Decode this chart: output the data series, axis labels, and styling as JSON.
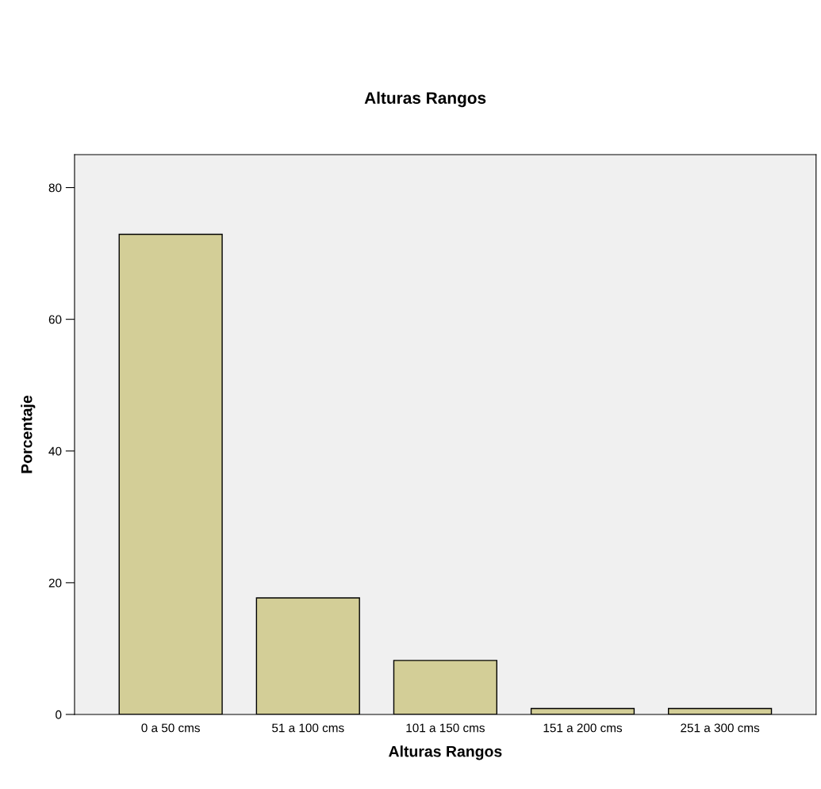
{
  "chart_data": {
    "type": "bar",
    "title": "Alturas Rangos",
    "xlabel": "Alturas Rangos",
    "ylabel": "Porcentaje",
    "categories": [
      "0 a 50 cms",
      "51 a 100 cms",
      "101 a 150 cms",
      "151 a 200 cms",
      "251 a 300 cms"
    ],
    "values": [
      72.9,
      17.7,
      8.2,
      0.9,
      0.9
    ],
    "color": "#d3ce97",
    "ylim": [
      0,
      85
    ],
    "yticks": [
      0,
      20,
      40,
      60,
      80
    ],
    "grid": false,
    "legend": false
  }
}
